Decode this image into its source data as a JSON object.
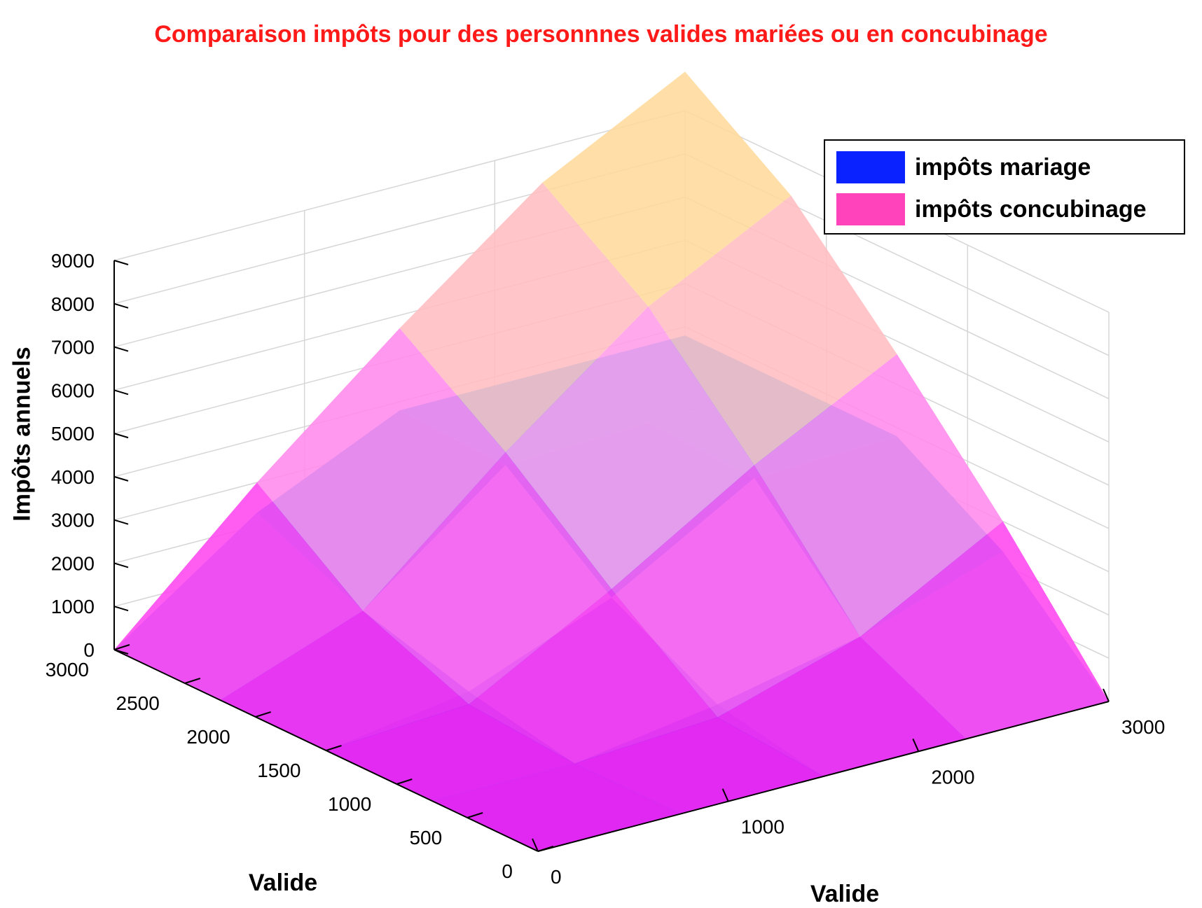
{
  "chart_data": {
    "type": "surface3d",
    "title": "Comparaison impôts pour des personnnes valides mariées ou en concubinage",
    "zlabel": "Impôts annuels",
    "xlabel": "Valide",
    "ylabel": "Valide",
    "zlim": [
      0,
      9000
    ],
    "z_ticks": [
      "0",
      "1000",
      "2000",
      "3000",
      "4000",
      "5000",
      "6000",
      "7000",
      "8000",
      "9000"
    ],
    "x_ticks": [
      "0",
      "500",
      "1000",
      "1500",
      "2000",
      "2500",
      "3000"
    ],
    "y_ticks": [
      "0",
      "1000",
      "2000",
      "3000"
    ],
    "grid": true,
    "legend_position": "top-right",
    "grid_values": [
      0,
      750,
      1500,
      2250,
      3000
    ],
    "series": [
      {
        "name": "impôts mariage",
        "color": "#0a22ff",
        "z": [
          [
            0,
            0,
            0,
            0,
            0
          ],
          [
            0,
            0,
            500,
            1200,
            2300
          ],
          [
            0,
            500,
            1800,
            3700,
            3800
          ],
          [
            0,
            1200,
            3700,
            3800,
            3800
          ],
          [
            0,
            2300,
            3800,
            3800,
            3800
          ]
        ]
      },
      {
        "name": "impôts concubinage",
        "color": "#ff44bb",
        "z": [
          [
            0,
            0,
            0,
            0,
            0
          ],
          [
            0,
            0,
            200,
            1200,
            3000
          ],
          [
            0,
            200,
            2000,
            4000,
            5700
          ],
          [
            0,
            1200,
            4000,
            6500,
            8200
          ],
          [
            0,
            3000,
            5700,
            8200,
            9900
          ]
        ]
      }
    ]
  }
}
